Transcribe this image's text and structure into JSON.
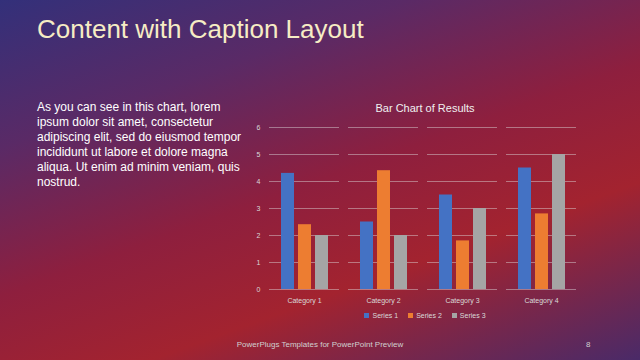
{
  "slide": {
    "title": "Content with Caption Layout",
    "caption": "As you can see in this chart, lorem ipsum dolor sit amet, consectetur adipiscing elit, sed do eiusmod tempor incididunt ut labore et dolore magna aliqua. Ut enim ad minim veniam, quis nostrud.",
    "footer": "PowerPlugs Templates for PowerPoint Preview",
    "page": "8"
  },
  "chart_data": {
    "type": "bar",
    "title": "Bar Chart of Results",
    "categories": [
      "Category 1",
      "Category 2",
      "Category 3",
      "Category 4"
    ],
    "series": [
      {
        "name": "Series 1",
        "color": "#4472c4",
        "values": [
          4.3,
          2.5,
          3.5,
          4.5
        ]
      },
      {
        "name": "Series 2",
        "color": "#ed7d31",
        "values": [
          2.4,
          4.4,
          1.8,
          2.8
        ]
      },
      {
        "name": "Series 3",
        "color": "#a5a5a5",
        "values": [
          2,
          2,
          3,
          5
        ]
      }
    ],
    "ylim": [
      0,
      6
    ],
    "yticks": [
      0,
      1,
      2,
      3,
      4,
      5,
      6
    ],
    "grid": true,
    "legend": "bottom"
  }
}
